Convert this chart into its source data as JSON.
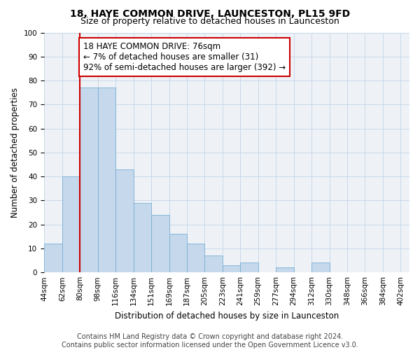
{
  "title": "18, HAYE COMMON DRIVE, LAUNCESTON, PL15 9FD",
  "subtitle": "Size of property relative to detached houses in Launceston",
  "xlabel": "Distribution of detached houses by size in Launceston",
  "ylabel": "Number of detached properties",
  "footnote1": "Contains HM Land Registry data © Crown copyright and database right 2024.",
  "footnote2": "Contains public sector information licensed under the Open Government Licence v3.0.",
  "categories": [
    "44sqm",
    "62sqm",
    "80sqm",
    "98sqm",
    "116sqm",
    "134sqm",
    "151sqm",
    "169sqm",
    "187sqm",
    "205sqm",
    "223sqm",
    "241sqm",
    "259sqm",
    "277sqm",
    "294sqm",
    "312sqm",
    "330sqm",
    "348sqm",
    "366sqm",
    "384sqm",
    "402sqm"
  ],
  "bar_heights": [
    12,
    40,
    77,
    77,
    43,
    29,
    24,
    16,
    12,
    7,
    3,
    4,
    0,
    2,
    0,
    4,
    0,
    0,
    0,
    0
  ],
  "bar_color": "#c5d8ec",
  "bar_edge_color": "#7aafd4",
  "grid_color": "#c8d8e8",
  "background_color": "#eef2f7",
  "vline_color": "#cc0000",
  "ylim": [
    0,
    100
  ],
  "annotation_text": "18 HAYE COMMON DRIVE: 76sqm\n← 7% of detached houses are smaller (31)\n92% of semi-detached houses are larger (392) →",
  "annotation_box_color": "#ffffff",
  "annotation_box_edge_color": "#cc0000",
  "title_fontsize": 10,
  "subtitle_fontsize": 9,
  "axis_label_fontsize": 8.5,
  "tick_fontsize": 7.5,
  "annotation_fontsize": 8.5,
  "footnote_fontsize": 7
}
